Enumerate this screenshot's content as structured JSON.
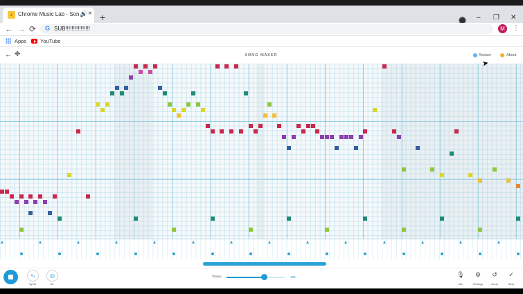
{
  "browser": {
    "tab_title": "Chrome Music Lab - Song M",
    "tab_audio_icon": "speaker-icon",
    "tab_close": "×",
    "new_tab": "+",
    "window_minimize": "–",
    "window_restore": "❐",
    "window_close": "✕",
    "address": "SUB!!!!!!!!!!!!!!!!",
    "avatar_initial": "M",
    "menu": "⋮",
    "nav_back": "←",
    "nav_forward": "→",
    "nav_reload": "⟳",
    "g_mark": "G"
  },
  "bookmarks": [
    {
      "label": "Apps",
      "icon": "apps-grid-icon"
    },
    {
      "label": "YouTube",
      "icon": "youtube-icon"
    }
  ],
  "songmaker": {
    "title": "SONG MAKER",
    "back": "←",
    "move": "✥",
    "restart_label": "Restart",
    "about_label": "About"
  },
  "colors": {
    "red": "#c8284d",
    "pink": "#cc4ea6",
    "purple": "#8e3fb0",
    "blue": "#36609f",
    "teal": "#1e8a77",
    "green": "#8ec63f",
    "yellow": "#d9d82c",
    "gold": "#f1bf3a",
    "orange": "#e4883a",
    "accent": "#1e9ad6"
  },
  "notes": [
    {
      "col": 0,
      "row": 23,
      "c": "red"
    },
    {
      "col": 1,
      "row": 23,
      "c": "red"
    },
    {
      "col": 2,
      "row": 24,
      "c": "red"
    },
    {
      "col": 3,
      "row": 25,
      "c": "purple"
    },
    {
      "col": 4,
      "row": 24,
      "c": "red"
    },
    {
      "col": 5,
      "row": 25,
      "c": "purple"
    },
    {
      "col": 6,
      "row": 27,
      "c": "blue"
    },
    {
      "col": 6,
      "row": 24,
      "c": "red"
    },
    {
      "col": 7,
      "row": 25,
      "c": "purple"
    },
    {
      "col": 8,
      "row": 24,
      "c": "red"
    },
    {
      "col": 9,
      "row": 25,
      "c": "purple"
    },
    {
      "col": 10,
      "row": 27,
      "c": "blue"
    },
    {
      "col": 11,
      "row": 24,
      "c": "red"
    },
    {
      "col": 12,
      "row": 28,
      "c": "teal"
    },
    {
      "col": 4,
      "row": 30,
      "c": "green"
    },
    {
      "col": 14,
      "row": 20,
      "c": "yellow"
    },
    {
      "col": 16,
      "row": 12,
      "c": "red"
    },
    {
      "col": 18,
      "row": 24,
      "c": "red"
    },
    {
      "col": 20,
      "row": 7,
      "c": "yellow"
    },
    {
      "col": 21,
      "row": 8,
      "c": "yellow"
    },
    {
      "col": 22,
      "row": 7,
      "c": "yellow"
    },
    {
      "col": 23,
      "row": 5,
      "c": "teal"
    },
    {
      "col": 24,
      "row": 4,
      "c": "blue"
    },
    {
      "col": 25,
      "row": 5,
      "c": "teal"
    },
    {
      "col": 26,
      "row": 4,
      "c": "blue"
    },
    {
      "col": 27,
      "row": 2,
      "c": "purple"
    },
    {
      "col": 28,
      "row": 0,
      "c": "red"
    },
    {
      "col": 29,
      "row": 1,
      "c": "pink"
    },
    {
      "col": 30,
      "row": 0,
      "c": "red"
    },
    {
      "col": 31,
      "row": 1,
      "c": "pink"
    },
    {
      "col": 32,
      "row": 0,
      "c": "red"
    },
    {
      "col": 33,
      "row": 4,
      "c": "blue"
    },
    {
      "col": 34,
      "row": 5,
      "c": "teal"
    },
    {
      "col": 28,
      "row": 28,
      "c": "teal"
    },
    {
      "col": 35,
      "row": 7,
      "c": "green"
    },
    {
      "col": 36,
      "row": 8,
      "c": "yellow"
    },
    {
      "col": 37,
      "row": 9,
      "c": "gold"
    },
    {
      "col": 38,
      "row": 8,
      "c": "yellow"
    },
    {
      "col": 39,
      "row": 7,
      "c": "green"
    },
    {
      "col": 40,
      "row": 5,
      "c": "teal"
    },
    {
      "col": 41,
      "row": 7,
      "c": "green"
    },
    {
      "col": 42,
      "row": 8,
      "c": "yellow"
    },
    {
      "col": 36,
      "row": 30,
      "c": "green"
    },
    {
      "col": 43,
      "row": 11,
      "c": "red"
    },
    {
      "col": 44,
      "row": 12,
      "c": "red"
    },
    {
      "col": 45,
      "row": 0,
      "c": "red"
    },
    {
      "col": 46,
      "row": 12,
      "c": "red"
    },
    {
      "col": 47,
      "row": 0,
      "c": "red"
    },
    {
      "col": 48,
      "row": 12,
      "c": "red"
    },
    {
      "col": 49,
      "row": 0,
      "c": "red"
    },
    {
      "col": 50,
      "row": 12,
      "c": "red"
    },
    {
      "col": 44,
      "row": 28,
      "c": "teal"
    },
    {
      "col": 51,
      "row": 5,
      "c": "teal"
    },
    {
      "col": 52,
      "row": 11,
      "c": "red"
    },
    {
      "col": 53,
      "row": 12,
      "c": "red"
    },
    {
      "col": 54,
      "row": 11,
      "c": "red"
    },
    {
      "col": 55,
      "row": 9,
      "c": "gold"
    },
    {
      "col": 56,
      "row": 7,
      "c": "green"
    },
    {
      "col": 57,
      "row": 9,
      "c": "gold"
    },
    {
      "col": 58,
      "row": 11,
      "c": "red"
    },
    {
      "col": 52,
      "row": 30,
      "c": "green"
    },
    {
      "col": 59,
      "row": 13,
      "c": "purple"
    },
    {
      "col": 60,
      "row": 15,
      "c": "blue"
    },
    {
      "col": 61,
      "row": 13,
      "c": "purple"
    },
    {
      "col": 62,
      "row": 11,
      "c": "red"
    },
    {
      "col": 63,
      "row": 12,
      "c": "red"
    },
    {
      "col": 64,
      "row": 11,
      "c": "red"
    },
    {
      "col": 65,
      "row": 11,
      "c": "red"
    },
    {
      "col": 66,
      "row": 12,
      "c": "red"
    },
    {
      "col": 60,
      "row": 28,
      "c": "teal"
    },
    {
      "col": 67,
      "row": 13,
      "c": "purple"
    },
    {
      "col": 68,
      "row": 13,
      "c": "purple"
    },
    {
      "col": 69,
      "row": 13,
      "c": "purple"
    },
    {
      "col": 70,
      "row": 15,
      "c": "blue"
    },
    {
      "col": 71,
      "row": 13,
      "c": "purple"
    },
    {
      "col": 72,
      "row": 13,
      "c": "purple"
    },
    {
      "col": 73,
      "row": 13,
      "c": "purple"
    },
    {
      "col": 74,
      "row": 15,
      "c": "blue"
    },
    {
      "col": 68,
      "row": 30,
      "c": "green"
    },
    {
      "col": 75,
      "row": 13,
      "c": "purple"
    },
    {
      "col": 76,
      "row": 12,
      "c": "red"
    },
    {
      "col": 78,
      "row": 8,
      "c": "yellow"
    },
    {
      "col": 80,
      "row": 0,
      "c": "red"
    },
    {
      "col": 76,
      "row": 28,
      "c": "teal"
    },
    {
      "col": 82,
      "row": 12,
      "c": "red"
    },
    {
      "col": 83,
      "row": 13,
      "c": "purple"
    },
    {
      "col": 84,
      "row": 19,
      "c": "green"
    },
    {
      "col": 87,
      "row": 15,
      "c": "blue"
    },
    {
      "col": 84,
      "row": 30,
      "c": "green"
    },
    {
      "col": 90,
      "row": 19,
      "c": "green"
    },
    {
      "col": 92,
      "row": 20,
      "c": "yellow"
    },
    {
      "col": 94,
      "row": 16,
      "c": "teal"
    },
    {
      "col": 95,
      "row": 12,
      "c": "red"
    },
    {
      "col": 92,
      "row": 28,
      "c": "teal"
    },
    {
      "col": 98,
      "row": 20,
      "c": "yellow"
    },
    {
      "col": 100,
      "row": 21,
      "c": "gold"
    },
    {
      "col": 103,
      "row": 19,
      "c": "green"
    },
    {
      "col": 106,
      "row": 21,
      "c": "gold"
    },
    {
      "col": 108,
      "row": 22,
      "c": "orange"
    },
    {
      "col": 100,
      "row": 30,
      "c": "green"
    },
    {
      "col": 108,
      "row": 28,
      "c": "teal"
    }
  ],
  "controls": {
    "synth_label": "Synth",
    "kit_label": "Kit",
    "tempo_label": "Tempo",
    "tempo_value": "125",
    "tempo_fraction": 0.65,
    "mic_label": "Mic",
    "settings_label": "Settings",
    "undo_label": "Undo",
    "save_label": "Save"
  }
}
